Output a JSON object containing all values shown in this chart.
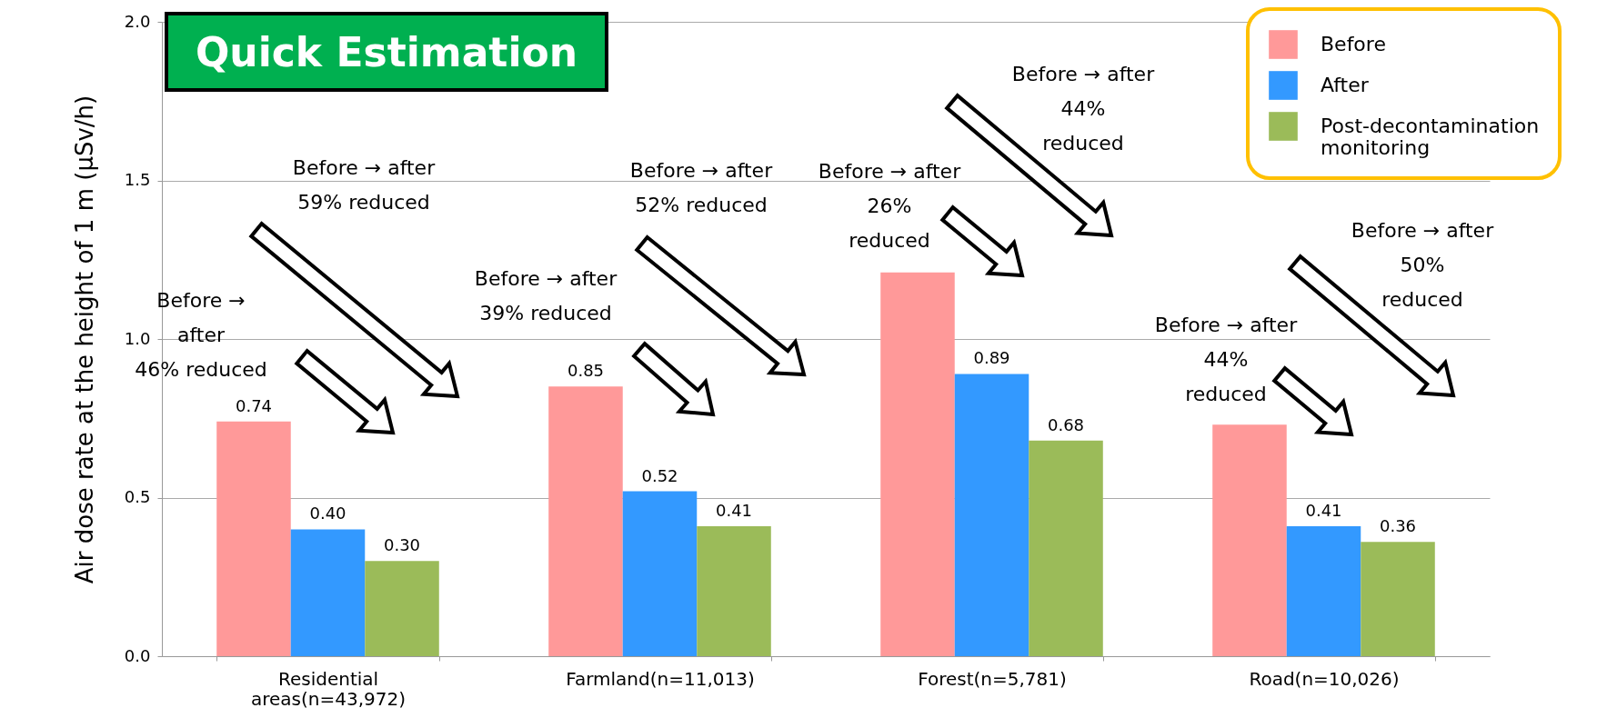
{
  "chart_data": {
    "type": "bar",
    "title": "Quick Estimation",
    "ylabel": "Air dose rate at the height of 1 m (µSv/h)",
    "categories": [
      "Residential areas(n=43,972)",
      "Farmland(n=11,013)",
      "Forest(n=5,781)",
      "Road(n=10,026)"
    ],
    "series": [
      {
        "name": "Before",
        "color": "#ff9999",
        "values": [
          0.74,
          0.85,
          1.21,
          0.73
        ],
        "value_labels": [
          "0.74",
          "0.85",
          null,
          null
        ]
      },
      {
        "name": "After",
        "color": "#3399ff",
        "values": [
          0.4,
          0.52,
          0.89,
          0.41
        ],
        "value_labels": [
          "0.40",
          "0.52",
          "0.89",
          "0.41"
        ]
      },
      {
        "name": "Post-decontamination monitoring",
        "color": "#9bbb59",
        "values": [
          0.3,
          0.41,
          0.68,
          0.36
        ],
        "value_labels": [
          "0.30",
          "0.41",
          "0.68",
          "0.36"
        ]
      }
    ],
    "ylim": [
      0,
      2
    ],
    "yticks": [
      {
        "value": 0,
        "label": "0.0"
      },
      {
        "value": 0.5,
        "label": "0.5"
      },
      {
        "value": 1,
        "label": "1.0"
      },
      {
        "value": 1.5,
        "label": "1.5"
      },
      {
        "value": 2,
        "label": "2.0"
      }
    ],
    "grid": "y",
    "legend": "top right",
    "annotations": [
      "Before →\nafter\n46% reduced",
      "Before → after\n59% reduced",
      "Before → after\n39% reduced",
      "Before → after\n52% reduced",
      "Before → after\n26%\nreduced",
      "Before → after\n44%\nreduced",
      "Before → after\n44%\nreduced",
      "Before → after\n50%\nreduced"
    ]
  }
}
